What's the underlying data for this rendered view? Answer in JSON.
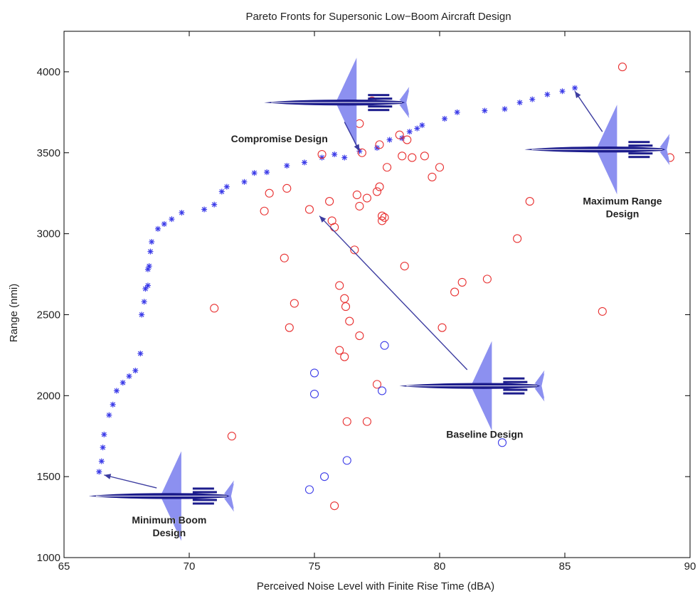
{
  "chart_data": {
    "type": "scatter",
    "title": "Pareto Fronts for Supersonic Low−Boom Aircraft Design",
    "xlabel": "Perceived Noise Level with Finite Rise Time (dBA)",
    "ylabel": "Range (nmi)",
    "xlim": [
      65,
      90
    ],
    "ylim": [
      1000,
      4250
    ],
    "xticks": [
      65,
      70,
      75,
      80,
      85,
      90
    ],
    "yticks": [
      1000,
      1500,
      2000,
      2500,
      3000,
      3500,
      4000
    ],
    "grid": false,
    "colors": {
      "front": "#3a3ae8",
      "red": "#e83030",
      "blue": "#3a3ae8",
      "aircraft": "#8c90f0",
      "aircraft_dark": "#1c1c8c",
      "arrow": "#3c3ca0"
    },
    "series": [
      {
        "marker": "asterisk",
        "color": "#3a3ae8",
        "points": [
          [
            66.4,
            1530
          ],
          [
            66.5,
            1595
          ],
          [
            66.55,
            1680
          ],
          [
            66.6,
            1760
          ],
          [
            66.8,
            1880
          ],
          [
            66.95,
            1945
          ],
          [
            67.1,
            2030
          ],
          [
            67.35,
            2080
          ],
          [
            67.6,
            2120
          ],
          [
            67.85,
            2155
          ],
          [
            68.05,
            2260
          ],
          [
            68.1,
            2500
          ],
          [
            68.2,
            2580
          ],
          [
            68.25,
            2660
          ],
          [
            68.35,
            2680
          ],
          [
            68.35,
            2780
          ],
          [
            68.4,
            2800
          ],
          [
            68.45,
            2890
          ],
          [
            68.5,
            2950
          ],
          [
            68.75,
            3030
          ],
          [
            69.0,
            3060
          ],
          [
            69.3,
            3090
          ],
          [
            69.7,
            3130
          ],
          [
            70.6,
            3150
          ],
          [
            71.0,
            3180
          ],
          [
            71.3,
            3260
          ],
          [
            71.5,
            3290
          ],
          [
            72.2,
            3320
          ],
          [
            72.6,
            3375
          ],
          [
            73.1,
            3380
          ],
          [
            73.9,
            3420
          ],
          [
            74.6,
            3440
          ],
          [
            75.3,
            3470
          ],
          [
            75.8,
            3490
          ],
          [
            76.2,
            3470
          ],
          [
            76.8,
            3510
          ],
          [
            77.5,
            3530
          ],
          [
            78.0,
            3580
          ],
          [
            78.5,
            3590
          ],
          [
            78.8,
            3630
          ],
          [
            79.1,
            3650
          ],
          [
            79.3,
            3670
          ],
          [
            80.2,
            3710
          ],
          [
            80.7,
            3750
          ],
          [
            81.8,
            3760
          ],
          [
            82.6,
            3770
          ],
          [
            83.2,
            3810
          ],
          [
            83.7,
            3830
          ],
          [
            84.3,
            3860
          ],
          [
            84.9,
            3880
          ],
          [
            85.4,
            3900
          ]
        ]
      },
      {
        "marker": "circle",
        "color": "#e83030",
        "points": [
          [
            77.3,
            3820
          ],
          [
            76.8,
            3680
          ],
          [
            87.3,
            4030
          ],
          [
            78.7,
            3580
          ],
          [
            78.4,
            3610
          ],
          [
            77.6,
            3550
          ],
          [
            76.9,
            3500
          ],
          [
            75.3,
            3490
          ],
          [
            78.5,
            3480
          ],
          [
            78.9,
            3470
          ],
          [
            79.4,
            3480
          ],
          [
            89.2,
            3470
          ],
          [
            80.0,
            3410
          ],
          [
            79.7,
            3350
          ],
          [
            77.9,
            3410
          ],
          [
            77.6,
            3290
          ],
          [
            77.5,
            3260
          ],
          [
            76.7,
            3240
          ],
          [
            77.1,
            3220
          ],
          [
            76.8,
            3170
          ],
          [
            75.6,
            3200
          ],
          [
            73.9,
            3280
          ],
          [
            73.2,
            3250
          ],
          [
            73.0,
            3140
          ],
          [
            74.8,
            3150
          ],
          [
            75.7,
            3080
          ],
          [
            75.8,
            3040
          ],
          [
            77.7,
            3110
          ],
          [
            77.8,
            3100
          ],
          [
            77.7,
            3080
          ],
          [
            83.6,
            3200
          ],
          [
            83.1,
            2970
          ],
          [
            76.6,
            2900
          ],
          [
            73.8,
            2850
          ],
          [
            78.6,
            2800
          ],
          [
            76.0,
            2680
          ],
          [
            76.2,
            2600
          ],
          [
            76.25,
            2550
          ],
          [
            74.2,
            2570
          ],
          [
            71.0,
            2540
          ],
          [
            76.4,
            2460
          ],
          [
            74.0,
            2420
          ],
          [
            80.1,
            2420
          ],
          [
            80.9,
            2700
          ],
          [
            80.6,
            2640
          ],
          [
            81.9,
            2720
          ],
          [
            86.5,
            2520
          ],
          [
            76.8,
            2370
          ],
          [
            76.0,
            2280
          ],
          [
            76.2,
            2240
          ],
          [
            77.5,
            2070
          ],
          [
            76.3,
            1840
          ],
          [
            77.1,
            1840
          ],
          [
            71.7,
            1750
          ],
          [
            75.8,
            1320
          ]
        ]
      },
      {
        "marker": "circle",
        "color": "#3a3ae8",
        "points": [
          [
            77.8,
            2310
          ],
          [
            75.0,
            2140
          ],
          [
            75.0,
            2010
          ],
          [
            77.7,
            2030
          ],
          [
            76.3,
            1600
          ],
          [
            75.4,
            1500
          ],
          [
            74.8,
            1420
          ],
          [
            82.5,
            1710
          ]
        ]
      }
    ],
    "annotations": [
      {
        "lines": [
          "Compromise Design"
        ],
        "x": 73.6,
        "y": 3565
      },
      {
        "lines": [
          "Maximum Range",
          "Design"
        ],
        "x": 87.3,
        "y": 3180
      },
      {
        "lines": [
          "Baseline Design"
        ],
        "x": 81.8,
        "y": 1740
      },
      {
        "lines": [
          "Minimum Boom",
          "Design"
        ],
        "x": 69.2,
        "y": 1210
      }
    ],
    "arrows": [
      {
        "from": [
          76.2,
          3690
        ],
        "to": [
          76.8,
          3510
        ]
      },
      {
        "from": [
          86.5,
          3630
        ],
        "to": [
          85.4,
          3880
        ]
      },
      {
        "from": [
          81.1,
          2160
        ],
        "to": [
          75.2,
          3110
        ]
      },
      {
        "from": [
          68.7,
          1430
        ],
        "to": [
          66.6,
          1510
        ]
      }
    ],
    "aircraft": [
      {
        "x": 76.4,
        "y": 3810,
        "scale": 1.0
      },
      {
        "x": 86.8,
        "y": 3520,
        "scale": 1.0
      },
      {
        "x": 81.8,
        "y": 2060,
        "scale": 1.0
      },
      {
        "x": 69.4,
        "y": 1380,
        "scale": 1.0
      }
    ]
  }
}
